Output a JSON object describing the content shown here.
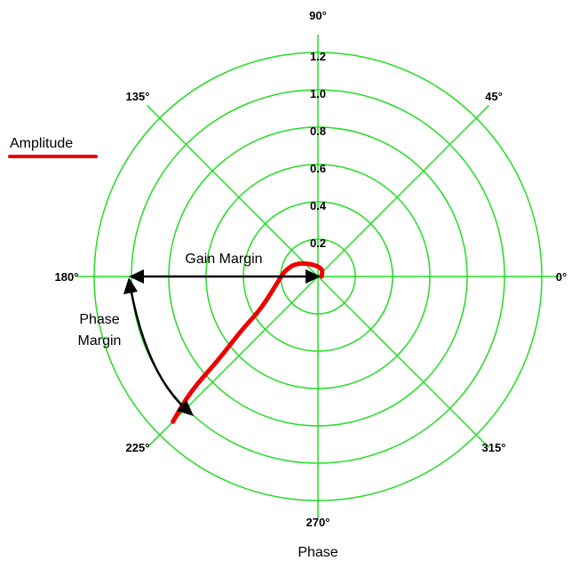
{
  "chart_data": {
    "type": "polar",
    "title": "",
    "angular_label": "Phase",
    "radial_ticks": [
      "0.2",
      "0.4",
      "0.6",
      "0.8",
      "1.0",
      "1.2"
    ],
    "radial_max": 1.2,
    "angle_ticks": [
      "0°",
      "45°",
      "90°",
      "135°",
      "180°",
      "225°",
      "270°",
      "315°"
    ],
    "grid": true,
    "grid_color": "#22dd22",
    "legend": {
      "position": "top-left",
      "entries": [
        {
          "label": "Amplitude",
          "color": "#ee0000"
        }
      ]
    },
    "series": [
      {
        "name": "Amplitude",
        "color": "#ee0000",
        "points": [
          {
            "phase": 0,
            "r": 0.02
          },
          {
            "phase": 60,
            "r": 0.05
          },
          {
            "phase": 120,
            "r": 0.08
          },
          {
            "phase": 150,
            "r": 0.14
          },
          {
            "phase": 170,
            "r": 0.18
          },
          {
            "phase": 185,
            "r": 0.21
          },
          {
            "phase": 200,
            "r": 0.27
          },
          {
            "phase": 210,
            "r": 0.36
          },
          {
            "phase": 215,
            "r": 0.5
          },
          {
            "phase": 220,
            "r": 0.7
          },
          {
            "phase": 222,
            "r": 0.92
          },
          {
            "phase": 225,
            "r": 1.1
          }
        ]
      }
    ],
    "annotations": {
      "gain_margin": "Gain Margin",
      "phase_margin_line1": "Phase",
      "phase_margin_line2": "Margin"
    }
  }
}
